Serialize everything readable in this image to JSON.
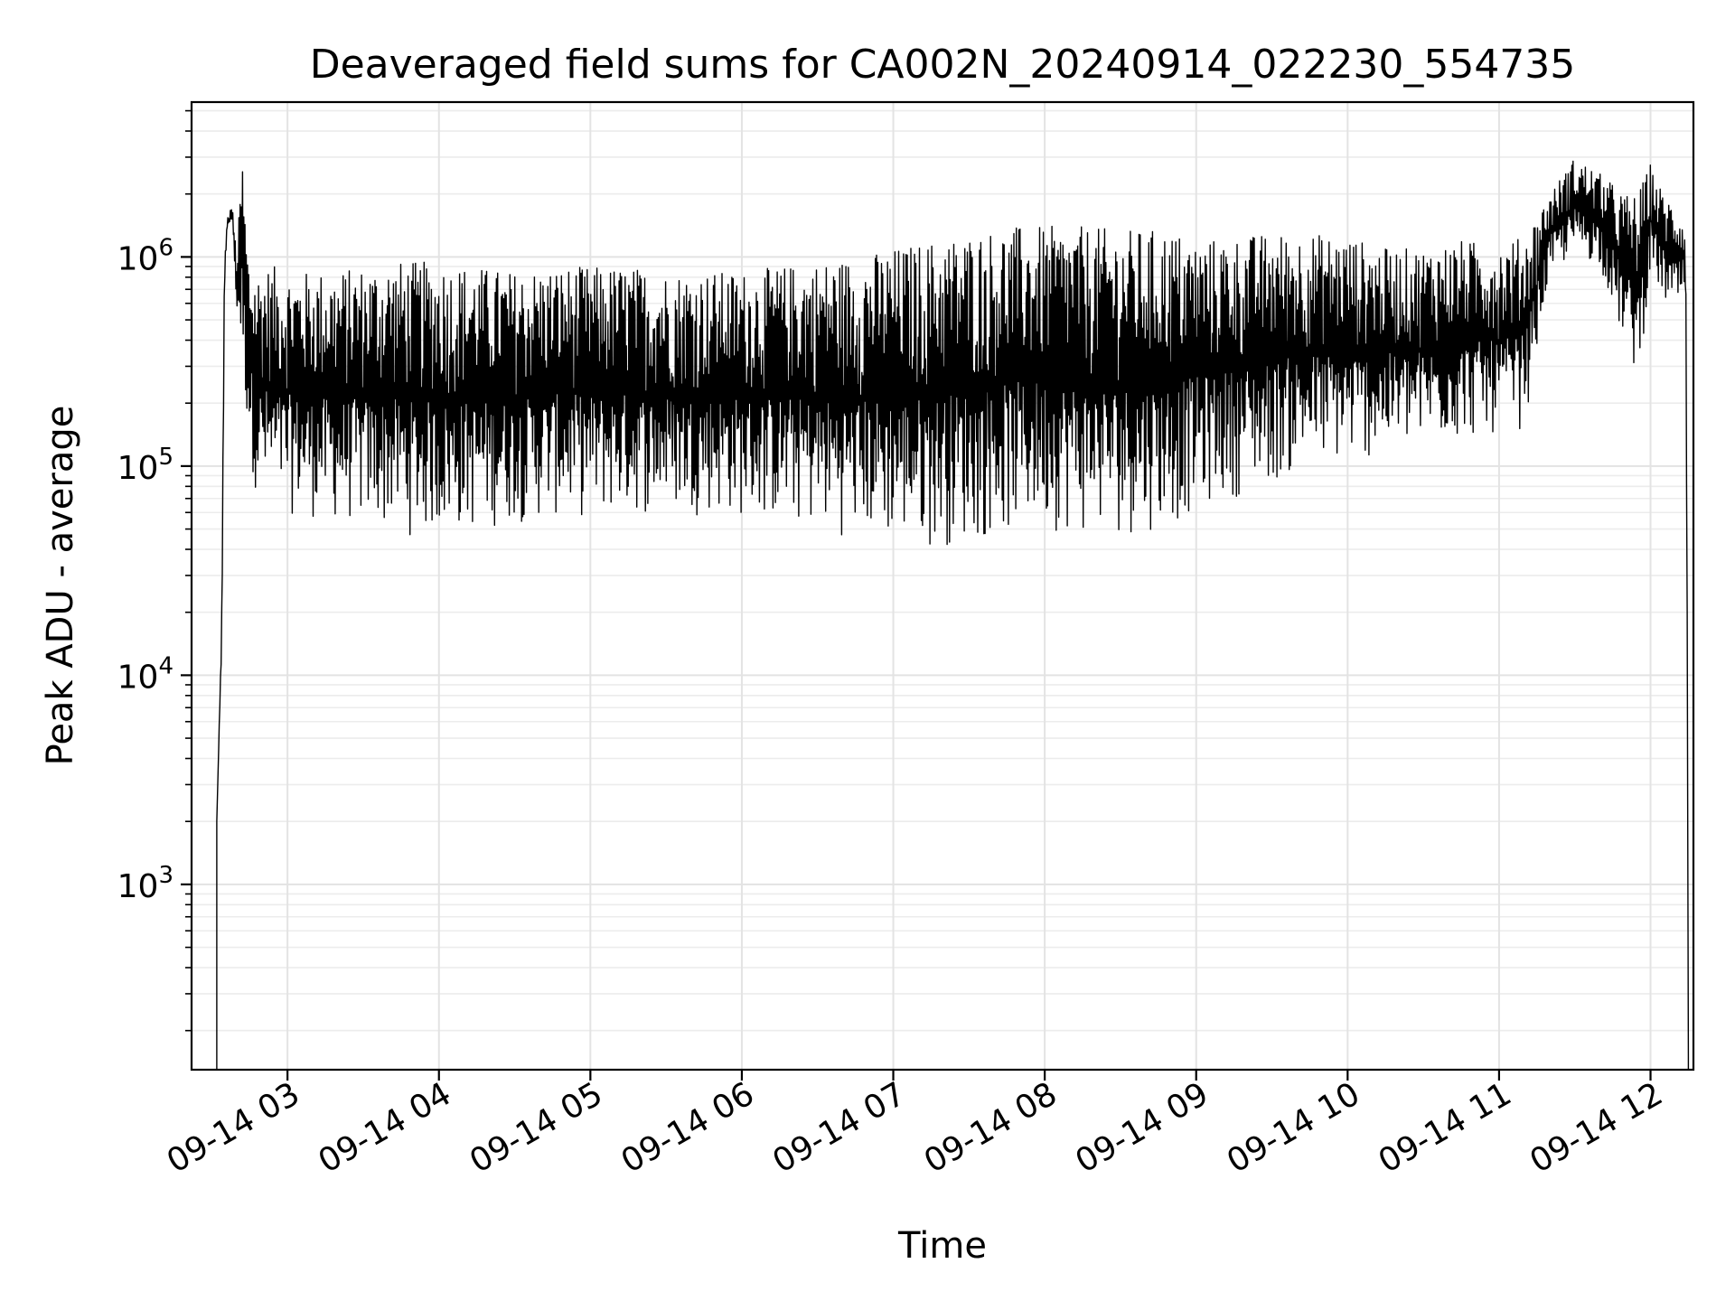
{
  "chart_data": {
    "type": "line",
    "title": "Deaveraged field sums for CA002N_20240914_022230_554735",
    "xlabel": "Time",
    "ylabel": "Peak ADU - average",
    "yscale": "log",
    "ylim": [
      130,
      5500000
    ],
    "xlim": [
      "2024-09-14T02:22:00",
      "2024-09-14T12:17:00"
    ],
    "grid": true,
    "legend": "none",
    "line_color": "#000000",
    "x_ticks": [
      {
        "t": "2024-09-14T03:00:00",
        "label": "09-14 03"
      },
      {
        "t": "2024-09-14T04:00:00",
        "label": "09-14 04"
      },
      {
        "t": "2024-09-14T05:00:00",
        "label": "09-14 05"
      },
      {
        "t": "2024-09-14T06:00:00",
        "label": "09-14 06"
      },
      {
        "t": "2024-09-14T07:00:00",
        "label": "09-14 07"
      },
      {
        "t": "2024-09-14T08:00:00",
        "label": "09-14 08"
      },
      {
        "t": "2024-09-14T09:00:00",
        "label": "09-14 09"
      },
      {
        "t": "2024-09-14T10:00:00",
        "label": "09-14 10"
      },
      {
        "t": "2024-09-14T11:00:00",
        "label": "09-14 11"
      },
      {
        "t": "2024-09-14T12:00:00",
        "label": "09-14 12"
      }
    ],
    "y_ticks": [
      {
        "value": 1000,
        "base": "10",
        "exp": "3"
      },
      {
        "value": 10000,
        "base": "10",
        "exp": "4"
      },
      {
        "value": 100000,
        "base": "10",
        "exp": "5"
      },
      {
        "value": 1000000,
        "base": "10",
        "exp": "6"
      }
    ],
    "series": [
      {
        "x": [
          "2024-09-14T02:32:00",
          "2024-09-14T02:33:00",
          "2024-09-14T02:34:00",
          "2024-09-14T02:35:00",
          "2024-09-14T02:36:00",
          "2024-09-14T02:38:00",
          "2024-09-14T02:40:00",
          "2024-09-14T02:42:00",
          "2024-09-14T02:44:00",
          "2024-09-14T02:45:00",
          "2024-09-14T02:46:00",
          "2024-09-14T02:47:00",
          "2024-09-14T02:48:00",
          "2024-09-14T02:50:00",
          "2024-09-14T02:55:00",
          "2024-09-14T03:00:00",
          "2024-09-14T03:10:00",
          "2024-09-14T03:20:00",
          "2024-09-14T03:30:00",
          "2024-09-14T03:40:00",
          "2024-09-14T03:50:00",
          "2024-09-14T04:00:00",
          "2024-09-14T04:15:00",
          "2024-09-14T04:30:00",
          "2024-09-14T04:45:00",
          "2024-09-14T05:00:00",
          "2024-09-14T05:15:00",
          "2024-09-14T05:30:00",
          "2024-09-14T05:45:00",
          "2024-09-14T06:00:00",
          "2024-09-14T06:15:00",
          "2024-09-14T06:30:00",
          "2024-09-14T06:45:00",
          "2024-09-14T07:00:00",
          "2024-09-14T07:15:00",
          "2024-09-14T07:30:00",
          "2024-09-14T07:45:00",
          "2024-09-14T08:00:00",
          "2024-09-14T08:15:00",
          "2024-09-14T08:30:00",
          "2024-09-14T08:40:00",
          "2024-09-14T08:50:00",
          "2024-09-14T09:00:00",
          "2024-09-14T09:15:00",
          "2024-09-14T09:30:00",
          "2024-09-14T09:45:00",
          "2024-09-14T10:00:00",
          "2024-09-14T10:15:00",
          "2024-09-14T10:30:00",
          "2024-09-14T10:45:00",
          "2024-09-14T11:00:00",
          "2024-09-14T11:10:00",
          "2024-09-14T11:20:00",
          "2024-09-14T11:30:00",
          "2024-09-14T11:40:00",
          "2024-09-14T11:50:00",
          "2024-09-14T11:55:00",
          "2024-09-14T12:00:00",
          "2024-09-14T12:05:00",
          "2024-09-14T12:10:00",
          "2024-09-14T12:13:00",
          "2024-09-14T12:14:00",
          "2024-09-14T12:15:00"
        ],
        "upper": [
          2000,
          6000,
          25000,
          900000,
          1500000,
          1800000,
          1000000,
          3300000,
          1200000,
          950000,
          900000,
          880000,
          860000,
          900000,
          900000,
          850000,
          850000,
          860000,
          900000,
          950000,
          950000,
          950000,
          900000,
          850000,
          900000,
          900000,
          900000,
          850000,
          850000,
          850000,
          900000,
          950000,
          1000000,
          1100000,
          1200000,
          1300000,
          1400000,
          1400000,
          1400000,
          1350000,
          1350000,
          1350000,
          1200000,
          1250000,
          1300000,
          1300000,
          1250000,
          1100000,
          1100000,
          1200000,
          1150000,
          1250000,
          2000000,
          3000000,
          2500000,
          2000000,
          2000000,
          2800000,
          2000000,
          1800000,
          1600000,
          1200000,
          600
        ],
        "lower": [
          2000,
          6000,
          9500,
          700000,
          1300000,
          1500000,
          500000,
          300000,
          150000,
          120000,
          90000,
          80000,
          70000,
          65000,
          60000,
          58000,
          55000,
          52000,
          50000,
          48000,
          45000,
          45000,
          48000,
          52000,
          55000,
          55000,
          57000,
          58000,
          58000,
          55000,
          52000,
          48000,
          45000,
          42000,
          40000,
          42000,
          45000,
          50000,
          45000,
          45000,
          48000,
          50000,
          60000,
          70000,
          80000,
          95000,
          100000,
          110000,
          120000,
          130000,
          140000,
          150000,
          800000,
          1000000,
          900000,
          350000,
          250000,
          800000,
          600000,
          500000,
          600000,
          500000,
          150
        ]
      }
    ]
  }
}
